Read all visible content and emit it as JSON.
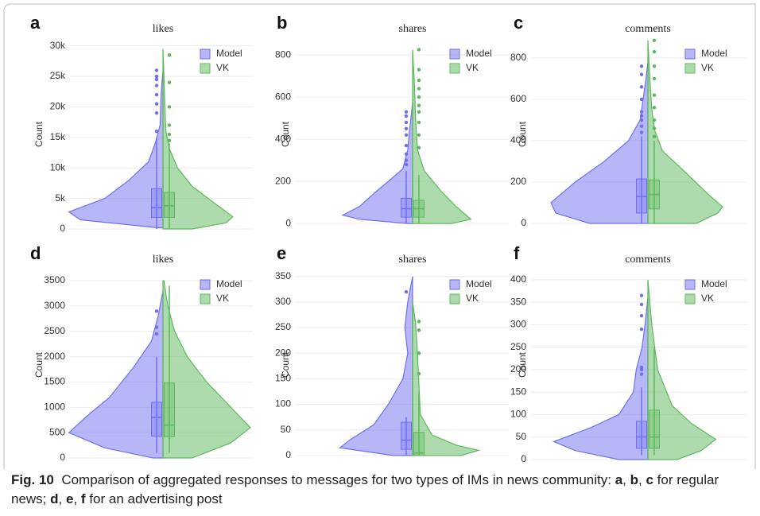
{
  "chart_data": [
    {
      "type": "violin",
      "label": "a",
      "title": "likes",
      "ylabel": "Count",
      "ylim": [
        0,
        31000
      ],
      "yticks": [
        0,
        {
          "value": 5000,
          "label": "5k"
        },
        {
          "value": 10000,
          "label": "10k"
        },
        {
          "value": 15000,
          "label": "15k"
        },
        {
          "value": 20000,
          "label": "20k"
        },
        {
          "value": 25000,
          "label": "25k"
        },
        {
          "value": 30000,
          "label": "30k"
        }
      ],
      "grid": true,
      "series": [
        {
          "name": "Model",
          "color": "#6f6ff0",
          "kde_y": [
            200,
            1500,
            2800,
            5000,
            8000,
            11000,
            14000,
            17000,
            22000,
            26000
          ],
          "kde": [
            0.05,
            0.85,
            0.97,
            0.6,
            0.35,
            0.15,
            0.08,
            0.03,
            0.02,
            0
          ],
          "q1": 1900,
          "median": 3500,
          "q3": 6600,
          "lower": 0,
          "upper": 15000,
          "outliers": [
            16000,
            19000,
            20500,
            22000,
            23500,
            24500,
            25000,
            26000
          ]
        },
        {
          "name": "VK",
          "color": "#5cb85c",
          "kde_y": [
            0,
            1000,
            2000,
            4000,
            7000,
            10000,
            13000,
            16000,
            20000,
            25000,
            29500
          ],
          "kde": [
            0.3,
            0.65,
            0.72,
            0.55,
            0.3,
            0.15,
            0.07,
            0.03,
            0.02,
            0.01,
            0
          ],
          "q1": 1900,
          "median": 3800,
          "q3": 6000,
          "lower": 0,
          "upper": 14000,
          "outliers": [
            14500,
            15500,
            17000,
            20000,
            24000,
            28500
          ]
        }
      ]
    },
    {
      "type": "violin",
      "label": "b",
      "title": "shares",
      "ylabel": "Count",
      "ylim": [
        -26,
        872
      ],
      "yticks": [
        0,
        200,
        400,
        600,
        800
      ],
      "grid": true,
      "series": [
        {
          "name": "Model",
          "color": "#6f6ff0",
          "kde_y": [
            0,
            20,
            40,
            80,
            150,
            200,
            260,
            350,
            450,
            570
          ],
          "kde": [
            0.05,
            0.55,
            0.72,
            0.55,
            0.38,
            0.25,
            0.1,
            0.05,
            0.03,
            0
          ],
          "q1": 30,
          "median": 70,
          "q3": 120,
          "lower": 0,
          "upper": 250,
          "outliers": [
            280,
            300,
            330,
            370,
            420,
            450,
            480,
            510,
            530
          ]
        },
        {
          "name": "VK",
          "color": "#5cb85c",
          "kde_y": [
            0,
            20,
            40,
            80,
            150,
            250,
            350,
            500,
            650,
            825
          ],
          "kde": [
            0.4,
            0.6,
            0.55,
            0.45,
            0.3,
            0.12,
            0.05,
            0.03,
            0.02,
            0
          ],
          "q1": 30,
          "median": 70,
          "q3": 110,
          "lower": 0,
          "upper": 230,
          "outliers": [
            360,
            420,
            480,
            530,
            560,
            600,
            640,
            680,
            730,
            825
          ]
        }
      ]
    },
    {
      "type": "violin",
      "label": "c",
      "title": "comments",
      "ylabel": "Count",
      "ylim": [
        -27,
        888
      ],
      "yticks": [
        0,
        200,
        400,
        600,
        800
      ],
      "grid": true,
      "series": [
        {
          "name": "Model",
          "color": "#6f6ff0",
          "kde_y": [
            0,
            50,
            100,
            200,
            300,
            400,
            500,
            600,
            700,
            780
          ],
          "kde": [
            0.6,
            0.95,
            1.0,
            0.75,
            0.45,
            0.2,
            0.08,
            0.05,
            0.02,
            0
          ],
          "q1": 50,
          "median": 130,
          "q3": 215,
          "lower": 0,
          "upper": 420,
          "outliers": [
            440,
            470,
            500,
            520,
            540,
            600,
            660,
            720,
            760
          ]
        },
        {
          "name": "VK",
          "color": "#5cb85c",
          "kde_y": [
            0,
            50,
            80,
            150,
            250,
            350,
            450,
            550,
            700,
            885
          ],
          "kde": [
            0.5,
            0.72,
            0.77,
            0.6,
            0.38,
            0.15,
            0.07,
            0.04,
            0.02,
            0
          ],
          "q1": 70,
          "median": 140,
          "q3": 210,
          "lower": 0,
          "upper": 400,
          "outliers": [
            420,
            460,
            500,
            560,
            620,
            700,
            760,
            830,
            885
          ]
        }
      ]
    },
    {
      "type": "violin",
      "label": "d",
      "title": "likes",
      "ylabel": "Count",
      "ylim": [
        -31,
        3705
      ],
      "yticks": [
        0,
        500,
        1000,
        1500,
        2000,
        2500,
        3000,
        3500
      ],
      "grid": true,
      "series": [
        {
          "name": "Model",
          "color": "#6f6ff0",
          "kde_y": [
            0,
            200,
            500,
            800,
            1200,
            1800,
            2300,
            2800,
            3300
          ],
          "kde": [
            0.1,
            0.6,
            0.97,
            0.8,
            0.55,
            0.3,
            0.12,
            0.05,
            0
          ],
          "q1": 430,
          "median": 800,
          "q3": 1100,
          "lower": 100,
          "upper": 2000,
          "outliers": [
            2450,
            2580,
            2900
          ]
        },
        {
          "name": "VK",
          "color": "#5cb85c",
          "kde_y": [
            0,
            300,
            600,
            1000,
            1500,
            2000,
            2500,
            3000,
            3500
          ],
          "kde": [
            0.3,
            0.7,
            0.9,
            0.7,
            0.45,
            0.25,
            0.12,
            0.05,
            0.01
          ],
          "q1": 420,
          "median": 650,
          "q3": 1480,
          "lower": 100,
          "upper": 3400,
          "outliers": []
        }
      ]
    },
    {
      "type": "violin",
      "label": "e",
      "title": "shares",
      "ylabel": "Count",
      "ylim": [
        -8,
        362
      ],
      "yticks": [
        0,
        50,
        100,
        150,
        200,
        250,
        300,
        350
      ],
      "grid": true,
      "series": [
        {
          "name": "Model",
          "color": "#6f6ff0",
          "kde_y": [
            0,
            15,
            30,
            60,
            100,
            150,
            200,
            250,
            300,
            350
          ],
          "kde": [
            0.2,
            0.75,
            0.65,
            0.4,
            0.25,
            0.1,
            0.05,
            0.08,
            0.05,
            0
          ],
          "q1": 12,
          "median": 30,
          "q3": 65,
          "lower": 0,
          "upper": 75,
          "outliers": [
            320
          ]
        },
        {
          "name": "VK",
          "color": "#5cb85c",
          "kde_y": [
            0,
            10,
            20,
            40,
            80,
            120,
            160,
            200,
            260,
            300
          ],
          "kde": [
            0.5,
            0.68,
            0.45,
            0.2,
            0.08,
            0.07,
            0.06,
            0.05,
            0.03,
            0
          ],
          "q1": 0,
          "median": 5,
          "q3": 45,
          "lower": 0,
          "upper": 125,
          "outliers": [
            160,
            200,
            245,
            262
          ]
        }
      ]
    },
    {
      "type": "violin",
      "label": "f",
      "title": "comments",
      "ylabel": "Count",
      "ylim": [
        0,
        421
      ],
      "yticks": [
        0,
        50,
        100,
        150,
        200,
        250,
        300,
        350,
        400
      ],
      "grid": true,
      "series": [
        {
          "name": "Model",
          "color": "#6f6ff0",
          "kde_y": [
            0,
            20,
            40,
            70,
            100,
            150,
            200,
            250,
            300,
            360
          ],
          "kde": [
            0.3,
            0.75,
            0.97,
            0.6,
            0.3,
            0.15,
            0.12,
            0.06,
            0.03,
            0
          ],
          "q1": 25,
          "median": 50,
          "q3": 85,
          "lower": 10,
          "upper": 160,
          "outliers": [
            190,
            200,
            205,
            290,
            320,
            345,
            365
          ]
        },
        {
          "name": "VK",
          "color": "#5cb85c",
          "kde_y": [
            0,
            20,
            45,
            80,
            120,
            200,
            300,
            400
          ],
          "kde": [
            0.3,
            0.55,
            0.7,
            0.45,
            0.25,
            0.1,
            0.04,
            0
          ],
          "q1": 25,
          "median": 50,
          "q3": 110,
          "lower": 10,
          "upper": 250,
          "outliers": []
        }
      ]
    }
  ],
  "caption": {
    "label": "Fig. 10",
    "parts": [
      "Comparison of aggregated responses to messages for two types of IMs in news community: ",
      "a",
      ", ",
      "b",
      ", ",
      "c",
      " for regular news; ",
      "d",
      ", ",
      "e",
      ", ",
      "f",
      " for an advertising post"
    ]
  }
}
